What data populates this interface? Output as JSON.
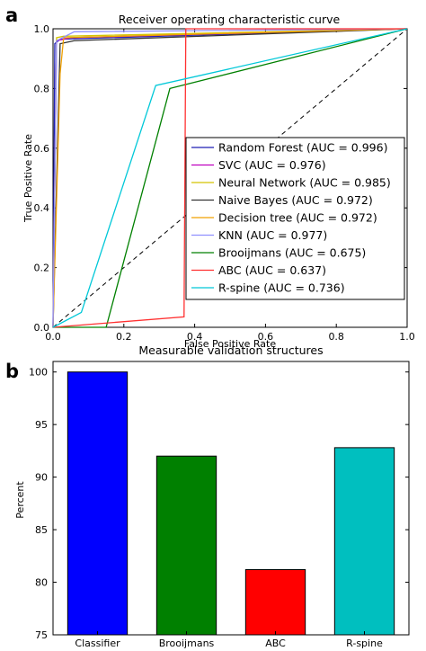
{
  "chart_data": [
    {
      "panel_label": "a",
      "type": "line",
      "title": "Receiver operating characteristic curve",
      "xlabel": "False Positive Rate",
      "ylabel": "True Positive Rate",
      "xlim": [
        0.0,
        1.0
      ],
      "ylim": [
        0.0,
        1.0
      ],
      "xticks": [
        "0.0",
        "0.2",
        "0.4",
        "0.6",
        "0.8",
        "1.0"
      ],
      "yticks": [
        "0.0",
        "0.2",
        "0.4",
        "0.6",
        "0.8",
        "1.0"
      ],
      "legend_position": "lower-right",
      "grid": false,
      "diagonal_reference": true,
      "series": [
        {
          "name": "Random Forest (AUC = 0.996)",
          "color": "#1f1fb4",
          "x": [
            0.0,
            0.005,
            0.02,
            1.0
          ],
          "y": [
            0.0,
            0.95,
            0.965,
            1.0
          ]
        },
        {
          "name": "SVC (AUC = 0.976)",
          "color": "#bf00bf",
          "x": [
            0.0,
            0.01,
            0.05,
            1.0
          ],
          "y": [
            0.0,
            0.96,
            0.97,
            1.0
          ]
        },
        {
          "name": "Neural Network (AUC = 0.985)",
          "color": "#d4c400",
          "x": [
            0.0,
            0.01,
            0.03,
            1.0
          ],
          "y": [
            0.0,
            0.97,
            0.975,
            1.0
          ]
        },
        {
          "name": "Naive Bayes (AUC = 0.972)",
          "color": "#333333",
          "x": [
            0.0,
            0.02,
            0.06,
            1.0
          ],
          "y": [
            0.0,
            0.95,
            0.96,
            1.0
          ]
        },
        {
          "name": "Decision tree (AUC = 0.972)",
          "color": "#f0a000",
          "x": [
            0.0,
            0.02,
            0.03,
            1.0
          ],
          "y": [
            0.0,
            0.85,
            0.97,
            1.0
          ]
        },
        {
          "name": "KNN (AUC = 0.977)",
          "color": "#9090ff",
          "x": [
            0.0,
            0.01,
            0.06,
            1.0
          ],
          "y": [
            0.0,
            0.96,
            0.99,
            1.0
          ]
        },
        {
          "name": "Brooijmans (AUC = 0.675)",
          "color": "#008000",
          "x": [
            0.0,
            0.15,
            0.33,
            1.0
          ],
          "y": [
            0.0,
            0.0,
            0.8,
            1.0
          ]
        },
        {
          "name": "ABC (AUC = 0.637)",
          "color": "#ff3030",
          "x": [
            0.0,
            0.37,
            0.375,
            1.0
          ],
          "y": [
            0.0,
            0.035,
            1.0,
            1.0
          ]
        },
        {
          "name": "R-spine (AUC = 0.736)",
          "color": "#00c8d8",
          "x": [
            0.0,
            0.08,
            0.29,
            1.0
          ],
          "y": [
            0.0,
            0.05,
            0.81,
            1.0
          ]
        }
      ]
    },
    {
      "panel_label": "b",
      "type": "bar",
      "title": "Measurable validation structures",
      "xlabel": "",
      "ylabel": "Percent",
      "ylim": [
        75,
        101
      ],
      "yticks": [
        "75",
        "80",
        "85",
        "90",
        "95",
        "100"
      ],
      "categories": [
        "Classifier",
        "Brooijmans",
        "ABC",
        "R-spine"
      ],
      "values": [
        100,
        92,
        81.2,
        92.8
      ],
      "colors": [
        "#0000ff",
        "#008000",
        "#ff0000",
        "#00bfbf"
      ]
    }
  ]
}
